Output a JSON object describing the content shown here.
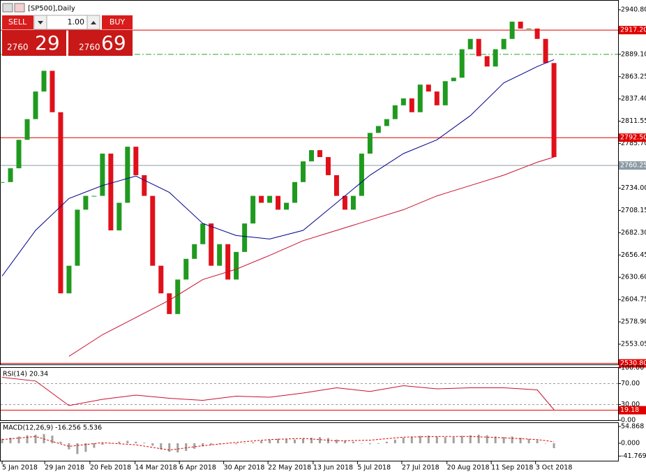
{
  "header": {
    "symbol": "[SP500],Daily"
  },
  "trade_panel": {
    "sell": "SELL",
    "buy": "BUY",
    "volume": "1.00",
    "bid_big": "2760",
    "bid_small": "29",
    "ask_big": "2760",
    "ask_small": "69"
  },
  "chart_data": [
    {
      "type": "candlestick",
      "up_color": "#1f9a1f",
      "down_color": "#e0101a",
      "closes": [
        2741,
        2757,
        2790,
        2814,
        2846,
        2870,
        2822,
        2612,
        2644,
        2709,
        2725,
        2725,
        2774,
        2685,
        2717,
        2782,
        2749,
        2725,
        2644,
        2612,
        2588,
        2628,
        2652,
        2669,
        2693,
        2644,
        2669,
        2628,
        2660,
        2693,
        2725,
        2717,
        2725,
        2709,
        2717,
        2741,
        2765,
        2778,
        2770,
        2749,
        2725,
        2709,
        2725,
        2774,
        2798,
        2806,
        2814,
        2830,
        2838,
        2822,
        2854,
        2846,
        2830,
        2858,
        2862,
        2895,
        2907,
        2887,
        2875,
        2895,
        2907,
        2927,
        2919,
        2919,
        2907,
        2879,
        2770
      ],
      "ma_index": [
        0,
        4,
        8,
        12,
        16,
        20,
        24,
        28,
        32,
        36,
        40,
        44,
        48,
        52,
        56,
        60,
        64,
        66
      ],
      "ma_series": [
        {
          "color": "#00008b",
          "values": [
            2632,
            2685,
            2722,
            2737,
            2748,
            2729,
            2693,
            2679,
            2675,
            2685,
            2717,
            2749,
            2774,
            2790,
            2818,
            2856,
            2875,
            2883
          ]
        },
        {
          "color": "#c8102e",
          "values": [
            null,
            null,
            2539,
            2564,
            2584,
            2604,
            2628,
            2640,
            2656,
            2673,
            2685,
            2697,
            2709,
            2725,
            2737,
            2749,
            2764,
            2770
          ]
        }
      ],
      "xlim": [
        -0.17,
        73.67
      ],
      "ylim": [
        2529.6,
        2951.3
      ],
      "yticks": [
        {
          "value": 2940.8,
          "label": "2940.80"
        },
        {
          "value": 2889.1,
          "label": "2889.10"
        },
        {
          "value": 2863.25,
          "label": "2863.25"
        },
        {
          "value": 2837.4,
          "label": "2837.40"
        },
        {
          "value": 2811.55,
          "label": "2811.55"
        },
        {
          "value": 2785.7,
          "label": "2785.70"
        },
        {
          "value": 2734,
          "label": "2734.00"
        },
        {
          "value": 2708.15,
          "label": "2708.15"
        },
        {
          "value": 2682.3,
          "label": "2682.30"
        },
        {
          "value": 2656.45,
          "label": "2656.45"
        },
        {
          "value": 2630.6,
          "label": "2630.60"
        },
        {
          "value": 2604.75,
          "label": "2604.75"
        },
        {
          "value": 2578.9,
          "label": "2578.90"
        },
        {
          "value": 2553.05,
          "label": "2553.05"
        }
      ],
      "levels": [
        {
          "value": 2917.2,
          "label": "2917.20",
          "color": "#e00000"
        },
        {
          "value": 2792.5,
          "label": "2792.50",
          "color": "#e00000"
        },
        {
          "value": 2760.25,
          "label": "2760.25",
          "color": "#8c9aa4"
        },
        {
          "value": 2530.8,
          "label": "2530.80",
          "color": "#e00000"
        }
      ],
      "guide": {
        "value": 2889.1,
        "color": "#2fa02f"
      },
      "xticks": [
        {
          "value": 0,
          "label": "5 Jan 2018"
        },
        {
          "value": 5.1,
          "label": "29 Jan 2018"
        },
        {
          "value": 10.5,
          "label": "20 Feb 2018"
        },
        {
          "value": 15.9,
          "label": "14 Mar 2018"
        },
        {
          "value": 21.2,
          "label": "6 Apr 2018"
        },
        {
          "value": 26.5,
          "label": "30 Apr 2018"
        },
        {
          "value": 31.8,
          "label": "22 May 2018"
        },
        {
          "value": 37.2,
          "label": "13 Jun 2018"
        },
        {
          "value": 42.5,
          "label": "5 Jul 2018"
        },
        {
          "value": 47.8,
          "label": "27 Jul 2018"
        },
        {
          "value": 53.2,
          "label": "20 Aug 2018"
        },
        {
          "value": 58.5,
          "label": "11 Sep 2018"
        },
        {
          "value": 63.8,
          "label": "3 Oct 2018"
        }
      ]
    },
    {
      "type": "line",
      "title": "RSI(14) 20.34",
      "color": "#c8102e",
      "x": [
        0,
        4,
        8,
        12,
        16,
        20,
        24,
        28,
        32,
        36,
        40,
        44,
        48,
        52,
        56,
        60,
        64,
        66
      ],
      "values": [
        82,
        75,
        28,
        40,
        48,
        42,
        38,
        46,
        44,
        52,
        62,
        55,
        66,
        60,
        62,
        62,
        58,
        20
      ],
      "ylim": [
        0,
        100
      ],
      "yticks": [
        {
          "value": 100,
          "label": "100.00"
        },
        {
          "value": 70,
          "label": "70.00"
        },
        {
          "value": 30,
          "label": "30.00"
        },
        {
          "value": 0,
          "label": "0.00"
        }
      ],
      "level": {
        "value": 19.18,
        "label": "19.18",
        "color": "#e00000"
      }
    },
    {
      "type": "histogram",
      "title": "MACD(12,26,9) -16.256 5.536",
      "color": "#a0a0a0",
      "values": [
        15,
        18,
        22,
        26,
        28,
        30,
        25,
        5,
        -20,
        -35,
        -28,
        -15,
        -5,
        0,
        5,
        8,
        5,
        2,
        -8,
        -20,
        -28,
        -30,
        -25,
        -18,
        -10,
        -5,
        -2,
        0,
        -3,
        0,
        3,
        8,
        12,
        15,
        14,
        12,
        15,
        18,
        20,
        17,
        12,
        8,
        5,
        0,
        -3,
        -2,
        5,
        12,
        18,
        22,
        24,
        25,
        22,
        20,
        20,
        24,
        26,
        28,
        26,
        22,
        20,
        22,
        18,
        14,
        10,
        0,
        -16
      ],
      "signal": {
        "color": "#e00000",
        "x": [
          0,
          4,
          8,
          12,
          16,
          20,
          24,
          28,
          32,
          36,
          40,
          44,
          48,
          52,
          56,
          60,
          64,
          66
        ],
        "values": [
          12,
          22,
          -10,
          2,
          -5,
          -22,
          -8,
          3,
          12,
          16,
          8,
          10,
          20,
          22,
          22,
          18,
          12,
          5
        ]
      },
      "ylim": [
        -57,
        66
      ],
      "yticks": [
        {
          "value": 54.868,
          "label": "54.868"
        },
        {
          "value": 0,
          "label": "0.000"
        },
        {
          "value": -41.769,
          "label": "-41.769"
        }
      ]
    }
  ]
}
